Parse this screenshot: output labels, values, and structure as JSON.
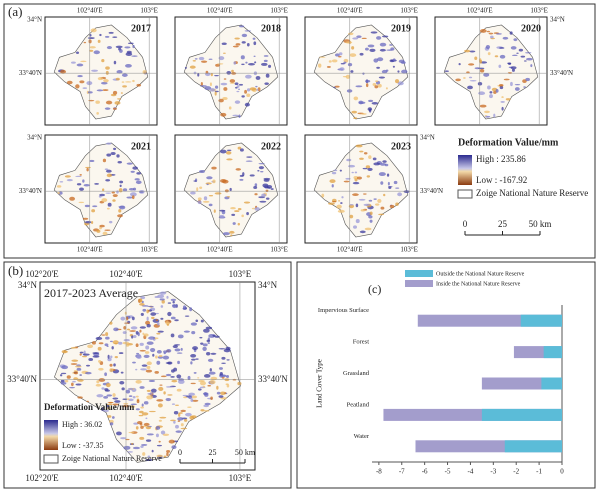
{
  "panel_a": {
    "label": "(a)",
    "years": [
      "2017",
      "2018",
      "2019",
      "2020",
      "2021",
      "2022",
      "2023"
    ],
    "lon_labels": [
      "102°40'E",
      "103°E"
    ],
    "lat_labels": [
      "34°N",
      "33°40'N"
    ],
    "legend": {
      "title": "Deformation Value/mm",
      "high": "High : 235.86",
      "low": "Low : -167.92",
      "reserve": "Zoige National Nature Reserve",
      "scale": [
        "0",
        "25",
        "50 km"
      ]
    }
  },
  "panel_b": {
    "label": "(b)",
    "title": "2017-2023 Average",
    "lon_labels": [
      "102°20'E",
      "102°40'E",
      "103°E"
    ],
    "lat_labels": [
      "34°N",
      "33°40'N"
    ],
    "legend": {
      "title": "Deformation Value/mm",
      "high": "High : 36.02",
      "low": "Low : -37.35",
      "reserve": "Zoige National Nature Reserve",
      "scale": [
        "0",
        "25",
        "50 km"
      ]
    }
  },
  "chart_data": {
    "type": "hbar_overlap",
    "title": "(c)",
    "y_label": "Land Cover Type",
    "categories": [
      "Impervious Surface",
      "Forest",
      "Grassland",
      "Peatland",
      "Water"
    ],
    "series": [
      {
        "name": "Outside the National Nature Reserve",
        "color": "#5bbcd8",
        "values": [
          -1.8,
          -0.8,
          -0.9,
          -3.5,
          -2.5
        ]
      },
      {
        "name": "Inside the National Nature Reserve",
        "color": "#a39dcc",
        "values": [
          -6.3,
          -2.1,
          -3.5,
          -7.8,
          -6.4
        ]
      }
    ],
    "xlim": [
      -8.3,
      0
    ],
    "xticks": [
      -8,
      -7,
      -6,
      -5,
      -4,
      -3,
      -2,
      -1,
      0
    ],
    "grid": false
  }
}
